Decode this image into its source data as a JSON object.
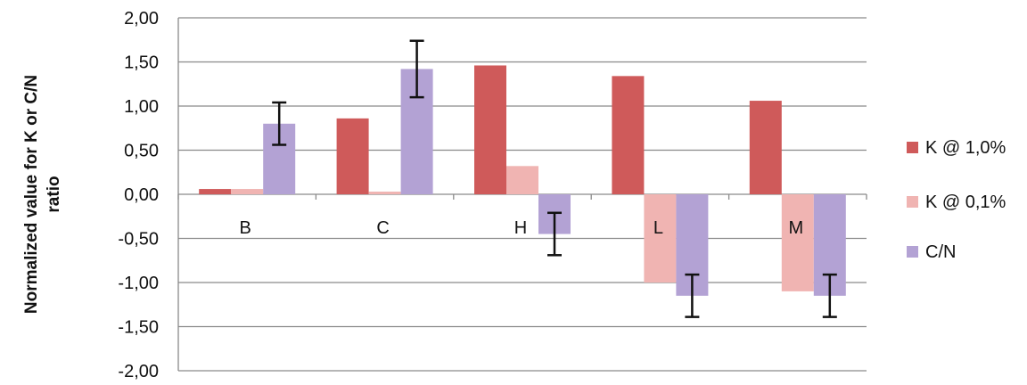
{
  "chart_data": {
    "type": "bar",
    "title": "",
    "xlabel": "",
    "ylabel_lines": [
      "Normalized value for K or C/N",
      "ratio"
    ],
    "categories": [
      "B",
      "C",
      "H",
      "L",
      "M"
    ],
    "ylim": [
      -2.0,
      2.0
    ],
    "yticks": [
      {
        "value": 2.0,
        "label": "2,00"
      },
      {
        "value": 1.5,
        "label": "1,50"
      },
      {
        "value": 1.0,
        "label": "1,00"
      },
      {
        "value": 0.5,
        "label": "0,50"
      },
      {
        "value": 0.0,
        "label": "0,00"
      },
      {
        "value": -0.5,
        "label": "-0,50"
      },
      {
        "value": -1.0,
        "label": "-1,00"
      },
      {
        "value": -1.5,
        "label": "-1,50"
      },
      {
        "value": -2.0,
        "label": "-2,00"
      }
    ],
    "grid": true,
    "legend_position": "right",
    "series": [
      {
        "name": "K @ 1,0%",
        "color": "#cf5a5a",
        "values": [
          0.06,
          0.86,
          1.46,
          1.34,
          1.06
        ],
        "errors": null
      },
      {
        "name": "K @ 0,1%",
        "color": "#f0b4b2",
        "values": [
          0.06,
          0.03,
          0.32,
          -1.0,
          -1.1
        ],
        "errors": null
      },
      {
        "name": "C/N",
        "color": "#b3a2d4",
        "values": [
          0.8,
          1.42,
          -0.45,
          -1.15,
          -1.15
        ],
        "errors": [
          0.24,
          0.32,
          0.24,
          0.24,
          0.24
        ]
      }
    ]
  }
}
